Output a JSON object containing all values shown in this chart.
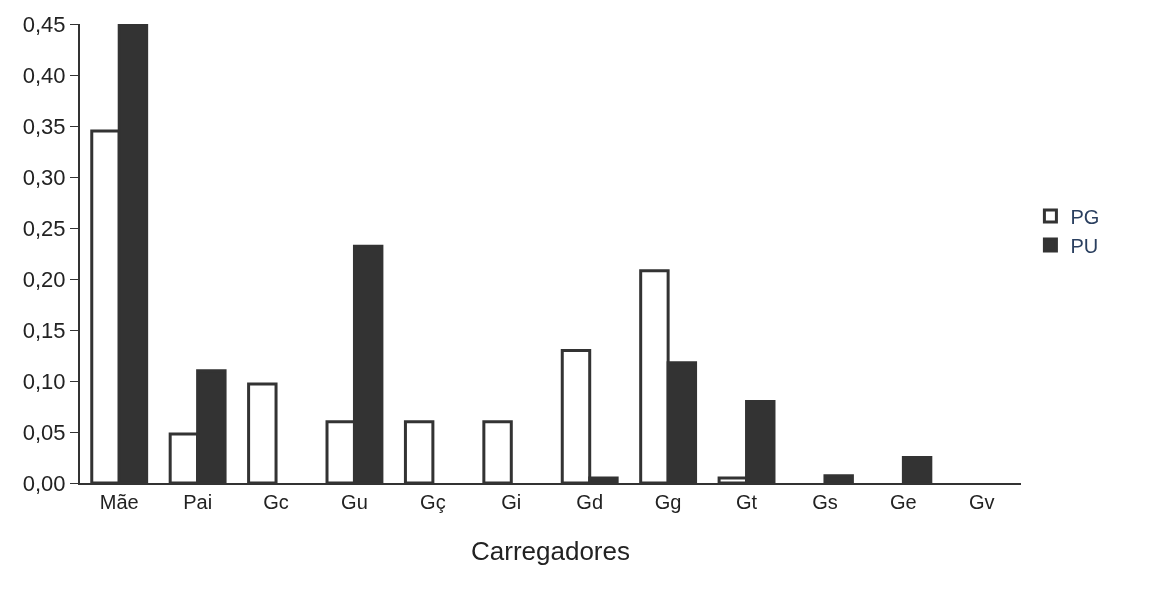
{
  "chart_data": {
    "type": "bar",
    "xlabel": "Carregadores",
    "categories": [
      "Mãe",
      "Pai",
      "Gc",
      "Gu",
      "Gç",
      "Gi",
      "Gd",
      "Gg",
      "Gt",
      "Gs",
      "Ge",
      "Gv"
    ],
    "series": [
      {
        "name": "PG",
        "color": "#ffffff",
        "values": [
          0.345,
          0.048,
          0.097,
          0.06,
          0.06,
          0.06,
          0.13,
          0.208,
          0.005,
          0,
          0,
          0
        ]
      },
      {
        "name": "PU",
        "color": "#333333",
        "values": [
          0.45,
          0.11,
          0,
          0.232,
          0,
          0,
          0.005,
          0.118,
          0.08,
          0.007,
          0.025,
          0
        ]
      }
    ],
    "ylim": [
      0,
      0.45
    ],
    "yticks": [
      {
        "value": 0,
        "label": "0,00"
      },
      {
        "value": 0.05,
        "label": "0,05"
      },
      {
        "value": 0.1,
        "label": "0,10"
      },
      {
        "value": 0.15,
        "label": "0,15"
      },
      {
        "value": 0.2,
        "label": "0,20"
      },
      {
        "value": 0.25,
        "label": "0,25"
      },
      {
        "value": 0.3,
        "label": "0,30"
      },
      {
        "value": 0.35,
        "label": "0,35"
      },
      {
        "value": 0.4,
        "label": "0,40"
      },
      {
        "value": 0.45,
        "label": "0,45"
      }
    ],
    "legend": "right"
  }
}
